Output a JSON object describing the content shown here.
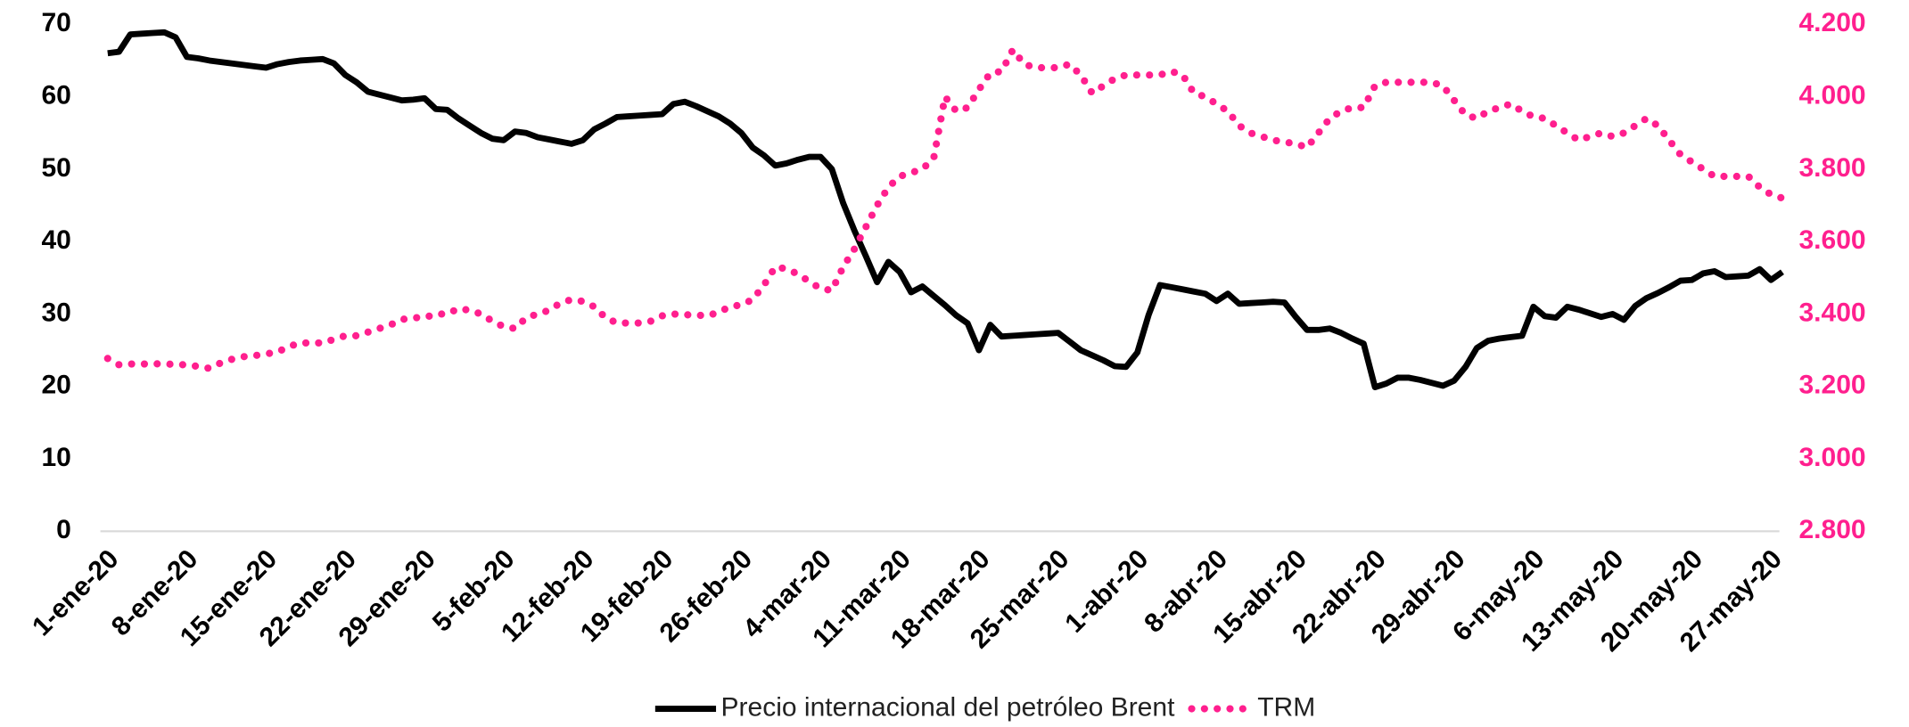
{
  "chart_data": {
    "type": "line",
    "categories": [
      "1-ene-20",
      null,
      null,
      null,
      null,
      null,
      null,
      "8-ene-20",
      null,
      null,
      null,
      null,
      null,
      null,
      "15-ene-20",
      null,
      null,
      null,
      null,
      null,
      null,
      "22-ene-20",
      null,
      null,
      null,
      null,
      null,
      null,
      "29-ene-20",
      null,
      null,
      null,
      null,
      null,
      null,
      "5-feb-20",
      null,
      null,
      null,
      null,
      null,
      null,
      "12-feb-20",
      null,
      null,
      null,
      null,
      null,
      null,
      "19-feb-20",
      null,
      null,
      null,
      null,
      null,
      null,
      "26-feb-20",
      null,
      null,
      null,
      null,
      null,
      null,
      "4-mar-20",
      null,
      null,
      null,
      null,
      null,
      null,
      "11-mar-20",
      null,
      null,
      null,
      null,
      null,
      null,
      "18-mar-20",
      null,
      null,
      null,
      null,
      null,
      null,
      "25-mar-20",
      null,
      null,
      null,
      null,
      null,
      null,
      "1-abr-20",
      null,
      null,
      null,
      null,
      null,
      null,
      "8-abr-20",
      null,
      null,
      null,
      null,
      null,
      null,
      "15-abr-20",
      null,
      null,
      null,
      null,
      null,
      null,
      "22-abr-20",
      null,
      null,
      null,
      null,
      null,
      null,
      "29-abr-20",
      null,
      null,
      null,
      null,
      null,
      null,
      "6-may-20",
      null,
      null,
      null,
      null,
      null,
      null,
      "13-may-20",
      null,
      null,
      null,
      null,
      null,
      null,
      "20-may-20",
      null,
      null,
      null,
      null,
      null,
      null,
      "27-may-20",
      null
    ],
    "series": [
      {
        "name": "Precio internacional del petróleo Brent",
        "color": "#000000",
        "style": "solid",
        "values": [
          66,
          66.2,
          68.6,
          68.7,
          68.8,
          68.9,
          68.2,
          65.5,
          65.3,
          65,
          64.8,
          64.6,
          64.4,
          64.2,
          64.0,
          64.5,
          64.8,
          65,
          65.1,
          65.2,
          64.6,
          63,
          62,
          60.7,
          60.3,
          59.9,
          59.5,
          59.6,
          59.8,
          58.3,
          58.2,
          57,
          56,
          55,
          54.2,
          54.0,
          55.2,
          55,
          54.4,
          54.1,
          53.8,
          53.5,
          54,
          55.5,
          56.3,
          57.2,
          57.3,
          57.4,
          57.5,
          57.6,
          59,
          59.3,
          58.7,
          58,
          57.3,
          56.3,
          55,
          53,
          51.9,
          50.5,
          50.8,
          51.3,
          51.7,
          51.7,
          50,
          45.3,
          41.5,
          38,
          34.4,
          37.2,
          35.8,
          33,
          33.8,
          32.5,
          31.2,
          29.8,
          28.7,
          25,
          28.5,
          26.9,
          27,
          27.1,
          27.2,
          27.3,
          27.4,
          26.2,
          25,
          24.3,
          23.6,
          22.8,
          22.7,
          24.7,
          29.9,
          34,
          33.7,
          33.4,
          33.1,
          32.8,
          31.8,
          32.8,
          31.4,
          31.5,
          31.6,
          31.7,
          31.6,
          29.6,
          27.8,
          27.8,
          28,
          27.4,
          26.6,
          25.9,
          19.9,
          20.4,
          21.2,
          21.2,
          20.9,
          20.5,
          20.1,
          20.8,
          22.7,
          25.3,
          26.3,
          26.6,
          26.8,
          27,
          31,
          29.7,
          29.5,
          31,
          30.6,
          30.1,
          29.6,
          30,
          29.2,
          31.1,
          32.2,
          32.9,
          33.7,
          34.6,
          34.7,
          35.6,
          35.9,
          35.1,
          35.2,
          35.3,
          36.2,
          34.7,
          35.8
        ]
      },
      {
        "name": "TRM",
        "color": "#ff1f8e",
        "style": "dotted",
        "axis": "y2",
        "values": [
          3277,
          3260,
          3262,
          3262,
          3262,
          3263,
          3260,
          3260,
          3255,
          3250,
          3265,
          3275,
          3282,
          3285,
          3290,
          3295,
          3310,
          3320,
          3320,
          3320,
          3330,
          3340,
          3340,
          3350,
          3360,
          3370,
          3385,
          3390,
          3390,
          3400,
          3400,
          3415,
          3410,
          3400,
          3380,
          3365,
          3360,
          3390,
          3400,
          3410,
          3430,
          3440,
          3435,
          3420,
          3390,
          3375,
          3375,
          3375,
          3380,
          3395,
          3400,
          3398,
          3397,
          3395,
          3405,
          3420,
          3425,
          3440,
          3480,
          3530,
          3525,
          3510,
          3490,
          3470,
          3465,
          3530,
          3580,
          3640,
          3700,
          3750,
          3780,
          3790,
          3800,
          3830,
          4000,
          3960,
          3970,
          4020,
          4065,
          4070,
          4130,
          4090,
          4080,
          4080,
          4080,
          4090,
          4060,
          4010,
          4030,
          4050,
          4060,
          4060,
          4060,
          4060,
          4070,
          4060,
          4010,
          4000,
          3980,
          3960,
          3920,
          3900,
          3890,
          3880,
          3875,
          3870,
          3860,
          3900,
          3940,
          3960,
          3970,
          3970,
          4030,
          4040,
          4040,
          4040,
          4040,
          4040,
          4030,
          3990,
          3950,
          3940,
          3960,
          3970,
          3980,
          3960,
          3945,
          3940,
          3920,
          3900,
          3880,
          3890,
          3900,
          3890,
          3900,
          3920,
          3940,
          3920,
          3880,
          3840,
          3820,
          3800,
          3780,
          3780,
          3780,
          3780,
          3750,
          3730,
          3720
        ]
      }
    ],
    "ylim": [
      0,
      70
    ],
    "yticks": [
      0,
      10,
      20,
      30,
      40,
      50,
      60,
      70
    ],
    "y2lim": [
      2800,
      4200
    ],
    "y2ticks": [
      {
        "value": 2800,
        "label": "2.800"
      },
      {
        "value": 3000,
        "label": "3.000"
      },
      {
        "value": 3200,
        "label": "3.200"
      },
      {
        "value": 3400,
        "label": "3.400"
      },
      {
        "value": 3600,
        "label": "3.600"
      },
      {
        "value": 3800,
        "label": "3.800"
      },
      {
        "value": 4000,
        "label": "4.000"
      },
      {
        "value": 4200,
        "label": "4.200"
      }
    ],
    "y2color": "#ff1f8e",
    "grid": false,
    "legend": "bottom"
  }
}
